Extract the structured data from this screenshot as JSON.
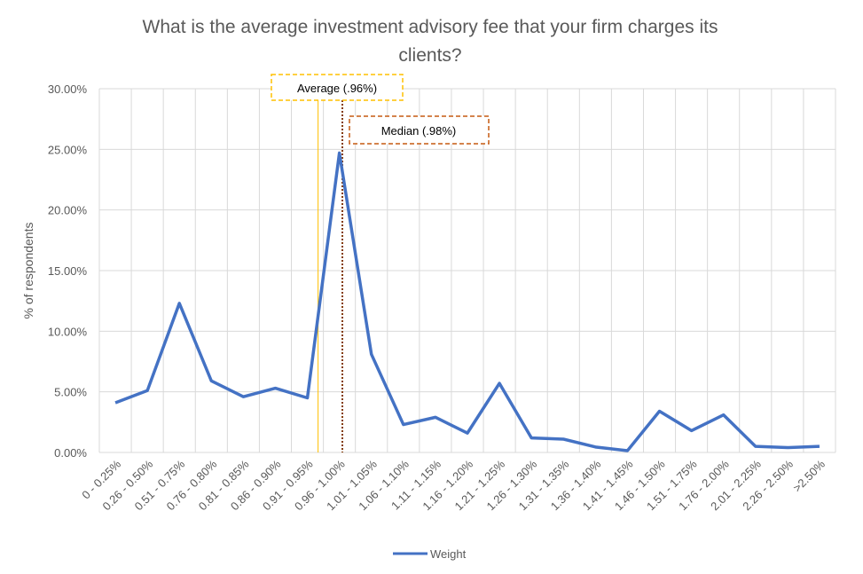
{
  "chart_data": {
    "type": "line",
    "title": "What is the average investment advisory fee that your firm charges its clients?",
    "title_lines": [
      "What is the average investment advisory fee that your firm charges its",
      "clients?"
    ],
    "xlabel": "",
    "ylabel": "% of respondents",
    "ylim": [
      0,
      30
    ],
    "yticks": [
      "0.00%",
      "5.00%",
      "10.00%",
      "15.00%",
      "20.00%",
      "25.00%",
      "30.00%"
    ],
    "grid": true,
    "legend_position": "bottom",
    "categories": [
      "0 - 0.25%",
      "0.26 - 0.50%",
      "0.51 - 0.75%",
      "0.76 - 0.80%",
      "0.81 - 0.85%",
      "0.86 - 0.90%",
      "0.91 - 0.95%",
      "0.96 - 1.00%",
      "1.01 - 1.05%",
      "1.06 - 1.10%",
      "1.11 - 1.15%",
      "1.16 - 1.20%",
      "1.21 - 1.25%",
      "1.26 - 1.30%",
      "1.31 - 1.35%",
      "1.36 - 1.40%",
      "1.41 - 1.45%",
      "1.46 - 1.50%",
      "1.51 - 1.75%",
      "1.76 - 2.00%",
      "2.01 - 2.25%",
      "2.26 - 2.50%",
      ">2.50%"
    ],
    "series": [
      {
        "name": "Weight",
        "color": "#4472C4",
        "values": [
          4.1,
          5.1,
          12.3,
          5.9,
          4.6,
          5.3,
          4.5,
          24.7,
          8.1,
          2.3,
          2.9,
          1.6,
          5.7,
          1.2,
          1.1,
          0.45,
          0.15,
          3.4,
          1.8,
          3.1,
          0.5,
          0.4,
          0.5
        ]
      }
    ],
    "annotations": [
      {
        "label": "Average (.96%)",
        "value": 0.96,
        "color": "#FFC000",
        "style": "solid"
      },
      {
        "label": "Median (.98%)",
        "value": 0.98,
        "color": "#843C0C",
        "style": "dotted",
        "box_color": "#C55A11"
      }
    ]
  }
}
